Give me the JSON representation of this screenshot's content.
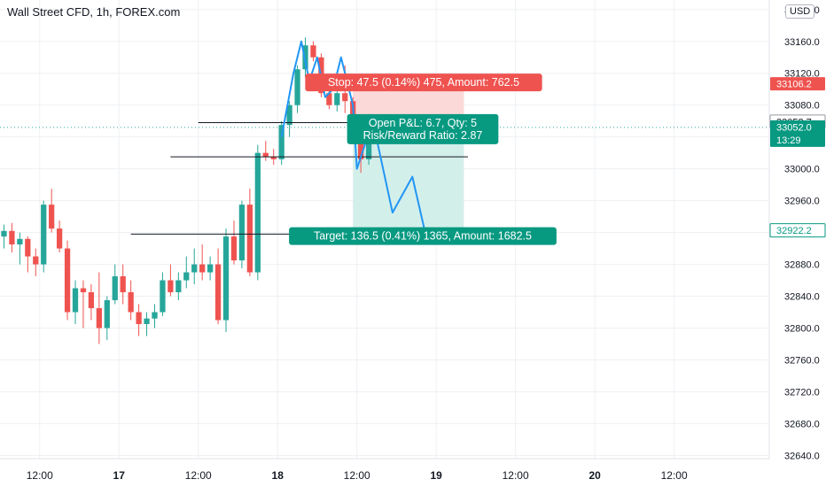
{
  "header": {
    "symbol_title": "Wall Street CFD, 1h, FOREX.com",
    "currency": "USD"
  },
  "colors": {
    "up": "#26a69a",
    "down": "#ef5350",
    "projection": "#2196f3",
    "stop_zone": "#fbd9d9",
    "target_zone": "#d3efea",
    "grid": "#eef0f3",
    "axis_text": "#131722"
  },
  "chart_data": {
    "type": "candlestick",
    "title": "Wall Street CFD, 1h, FOREX.com",
    "price_scale": {
      "currency": "USD",
      "ticks": [
        33200.0,
        33160.0,
        33120.0,
        33080.0,
        33040.0,
        33000.0,
        32960.0,
        32920.0,
        32880.0,
        32840.0,
        32800.0,
        32760.0,
        32720.0,
        32680.0,
        32640.0
      ],
      "range": [
        32636,
        33212
      ]
    },
    "time_scale": {
      "labels": [
        "12:00",
        "17",
        "12:00",
        "18",
        "12:00",
        "19",
        "12:00",
        "20",
        "12:00"
      ],
      "label_bar_index": [
        5,
        15,
        25,
        35,
        45,
        55,
        65,
        75,
        85
      ],
      "bar_range": [
        0,
        97
      ]
    },
    "candles": [
      {
        "o": 32915,
        "h": 32930,
        "l": 32900,
        "c": 32922
      },
      {
        "o": 32922,
        "h": 32932,
        "l": 32895,
        "c": 32905
      },
      {
        "o": 32905,
        "h": 32920,
        "l": 32880,
        "c": 32912
      },
      {
        "o": 32912,
        "h": 32915,
        "l": 32870,
        "c": 32890
      },
      {
        "o": 32890,
        "h": 32900,
        "l": 32865,
        "c": 32880
      },
      {
        "o": 32880,
        "h": 32960,
        "l": 32870,
        "c": 32955
      },
      {
        "o": 32955,
        "h": 32975,
        "l": 32920,
        "c": 32925
      },
      {
        "o": 32925,
        "h": 32935,
        "l": 32895,
        "c": 32900
      },
      {
        "o": 32900,
        "h": 32910,
        "l": 32810,
        "c": 32820
      },
      {
        "o": 32820,
        "h": 32860,
        "l": 32805,
        "c": 32850
      },
      {
        "o": 32850,
        "h": 32860,
        "l": 32800,
        "c": 32845
      },
      {
        "o": 32845,
        "h": 32855,
        "l": 32810,
        "c": 32825
      },
      {
        "o": 32825,
        "h": 32870,
        "l": 32780,
        "c": 32800
      },
      {
        "o": 32800,
        "h": 32840,
        "l": 32785,
        "c": 32835
      },
      {
        "o": 32835,
        "h": 32880,
        "l": 32830,
        "c": 32865
      },
      {
        "o": 32865,
        "h": 32880,
        "l": 32830,
        "c": 32845
      },
      {
        "o": 32845,
        "h": 32860,
        "l": 32810,
        "c": 32820
      },
      {
        "o": 32820,
        "h": 32830,
        "l": 32790,
        "c": 32805
      },
      {
        "o": 32805,
        "h": 32820,
        "l": 32790,
        "c": 32812
      },
      {
        "o": 32812,
        "h": 32830,
        "l": 32800,
        "c": 32820
      },
      {
        "o": 32820,
        "h": 32870,
        "l": 32815,
        "c": 32860
      },
      {
        "o": 32860,
        "h": 32880,
        "l": 32840,
        "c": 32845
      },
      {
        "o": 32845,
        "h": 32870,
        "l": 32835,
        "c": 32860
      },
      {
        "o": 32860,
        "h": 32890,
        "l": 32850,
        "c": 32870
      },
      {
        "o": 32870,
        "h": 32900,
        "l": 32855,
        "c": 32880
      },
      {
        "o": 32880,
        "h": 32905,
        "l": 32860,
        "c": 32870
      },
      {
        "o": 32870,
        "h": 32890,
        "l": 32860,
        "c": 32880
      },
      {
        "o": 32880,
        "h": 32900,
        "l": 32805,
        "c": 32810
      },
      {
        "o": 32810,
        "h": 32925,
        "l": 32795,
        "c": 32915
      },
      {
        "o": 32915,
        "h": 32935,
        "l": 32880,
        "c": 32885
      },
      {
        "o": 32885,
        "h": 32960,
        "l": 32875,
        "c": 32955
      },
      {
        "o": 32955,
        "h": 32975,
        "l": 32865,
        "c": 32870
      },
      {
        "o": 32870,
        "h": 33030,
        "l": 32860,
        "c": 33020
      },
      {
        "o": 33020,
        "h": 33035,
        "l": 33010,
        "c": 33015
      },
      {
        "o": 33015,
        "h": 33025,
        "l": 33005,
        "c": 33012
      },
      {
        "o": 33012,
        "h": 33060,
        "l": 33005,
        "c": 33055
      },
      {
        "o": 33055,
        "h": 33085,
        "l": 33040,
        "c": 33080
      },
      {
        "o": 33080,
        "h": 33130,
        "l": 33070,
        "c": 33125
      },
      {
        "o": 33125,
        "h": 33165,
        "l": 33115,
        "c": 33155
      },
      {
        "o": 33155,
        "h": 33160,
        "l": 33135,
        "c": 33140
      },
      {
        "o": 33140,
        "h": 33145,
        "l": 33090,
        "c": 33095
      },
      {
        "o": 33095,
        "h": 33110,
        "l": 33075,
        "c": 33080
      },
      {
        "o": 33080,
        "h": 33100,
        "l": 33072,
        "c": 33095
      },
      {
        "o": 33095,
        "h": 33130,
        "l": 33070,
        "c": 33085
      },
      {
        "o": 33085,
        "h": 33090,
        "l": 33050,
        "c": 33058
      },
      {
        "o": 33058,
        "h": 33062,
        "l": 32995,
        "c": 33012
      },
      {
        "o": 33012,
        "h": 33065,
        "l": 33005,
        "c": 33052
      }
    ],
    "projection_path": [
      {
        "bar": 35.5,
        "price": 33040
      },
      {
        "bar": 37,
        "price": 33120
      },
      {
        "bar": 38,
        "price": 33160
      },
      {
        "bar": 39,
        "price": 33110
      },
      {
        "bar": 40,
        "price": 33140
      },
      {
        "bar": 41,
        "price": 33090
      },
      {
        "bar": 42,
        "price": 33100
      },
      {
        "bar": 43,
        "price": 33140
      },
      {
        "bar": 44.5,
        "price": 33080
      },
      {
        "bar": 45,
        "price": 33000
      },
      {
        "bar": 47,
        "price": 33060
      },
      {
        "bar": 49.5,
        "price": 32945
      },
      {
        "bar": 52,
        "price": 32990
      },
      {
        "bar": 53.5,
        "price": 32925
      },
      {
        "bar": 55,
        "price": 32918
      }
    ],
    "horizontal_lines": [
      {
        "price": 33058,
        "from_bar": 25,
        "to_bar": 59
      },
      {
        "price": 33015,
        "from_bar": 21.5,
        "to_bar": 59
      },
      {
        "price": 32918,
        "from_bar": 16.5,
        "to_bar": 64
      }
    ],
    "short_position": {
      "entry": 33058.7,
      "stop": 33106.2,
      "target": 32922.2,
      "from_bar": 44.5,
      "to_bar": 58.5,
      "stop_label": "Stop: 47.5 (0.14%) 475, Amount: 762.5",
      "pnl_label": "Open P&L: 6.7, Qty: 5",
      "rr_label": "Risk/Reward Ratio: 2.87",
      "target_label": "Target: 136.5 (0.41%) 1365, Amount: 1682.5"
    },
    "axis_badges": [
      {
        "price": 33106.2,
        "text": "33106.2",
        "style": "red"
      },
      {
        "price": 33058.7,
        "text": "33058.7",
        "style": "gray"
      },
      {
        "price": 33052.0,
        "text": "33052.0",
        "sub": "13:29",
        "style": "teal"
      },
      {
        "price": 32922.2,
        "text": "32922.2",
        "style": "teal-outline"
      }
    ],
    "last_price_line": 33052.0
  }
}
